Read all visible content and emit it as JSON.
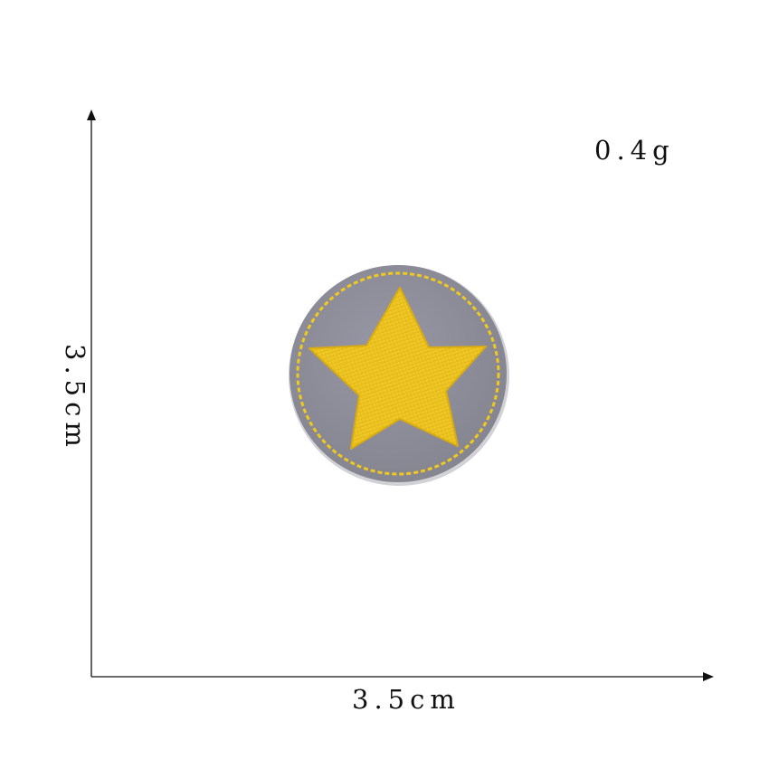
{
  "labels": {
    "weight": "0.4g",
    "width": "3.5cm",
    "height": "3.5cm"
  },
  "patch": {
    "shape": "circle",
    "motif": "star",
    "felt_color": "#8f8f9c",
    "thread_color": "#f0c81e",
    "stitch_border": "dashed"
  },
  "colors": {
    "axis": "#111111",
    "background": "#ffffff"
  }
}
